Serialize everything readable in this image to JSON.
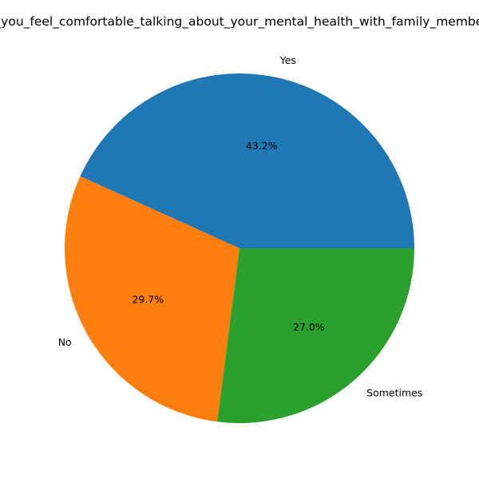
{
  "chart_data": {
    "type": "pie",
    "title": "Do_you_feel_comfortable_talking_about_your_mental_health_with_family_members?",
    "slices": [
      {
        "label": "Yes",
        "value": 43.2,
        "pct_label": "43.2%",
        "color": "#1f77b4"
      },
      {
        "label": "No",
        "value": 29.7,
        "pct_label": "29.7%",
        "color": "#ff7f0e"
      },
      {
        "label": "Sometimes",
        "value": 27.0,
        "pct_label": "27.0%",
        "color": "#2ca02c"
      }
    ],
    "start_angle_deg": 0,
    "direction": "counterclockwise",
    "legend": "none"
  }
}
